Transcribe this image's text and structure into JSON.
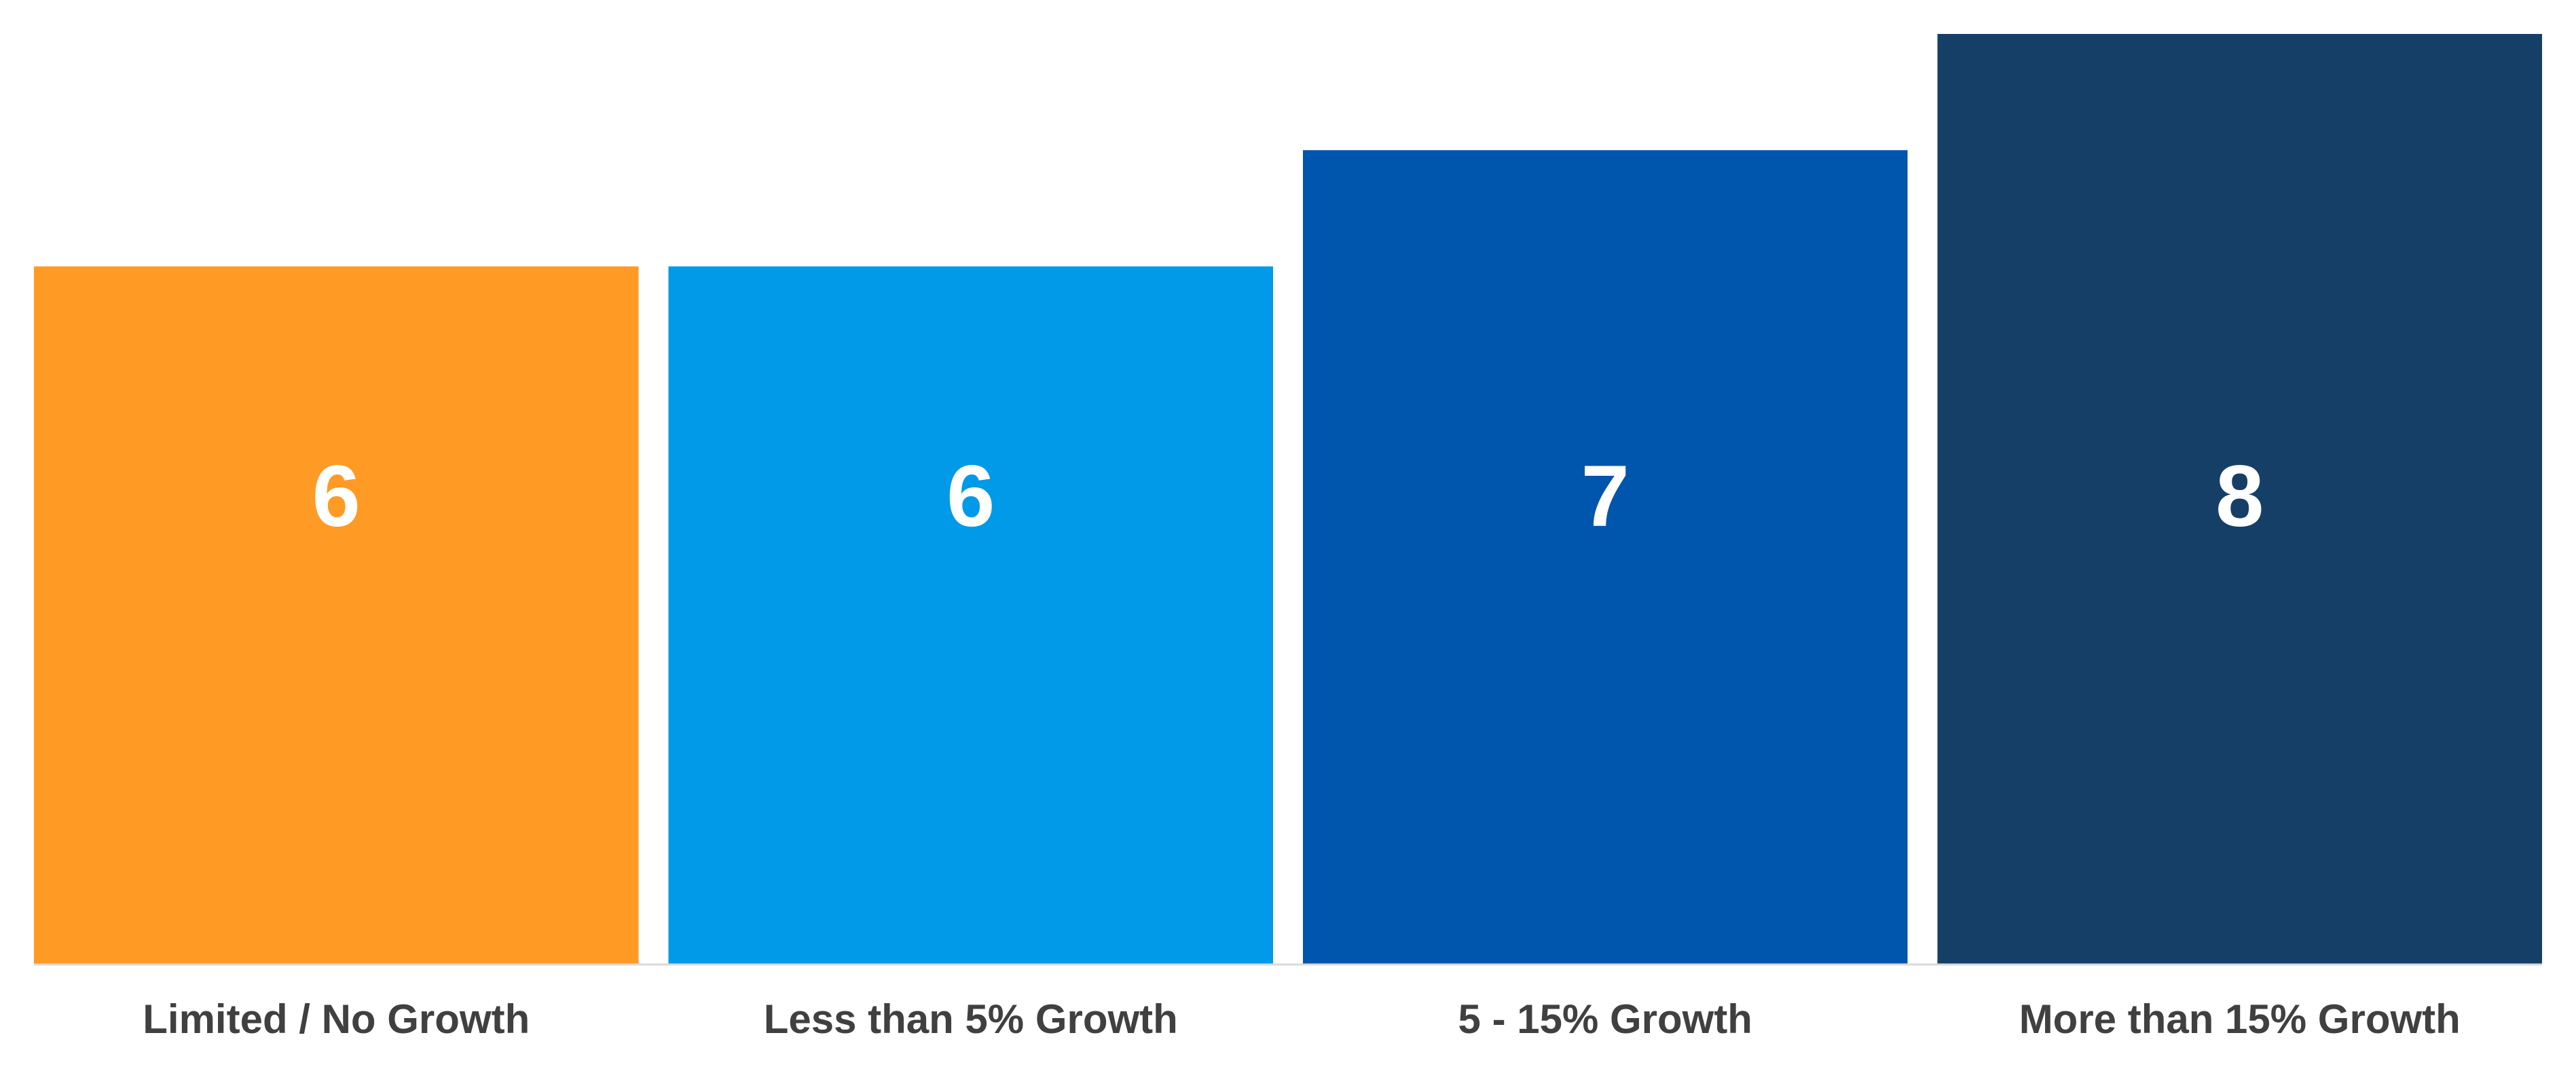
{
  "chart_data": {
    "type": "bar",
    "categories": [
      "Limited / No Growth",
      "Less than 5% Growth",
      "5 - 15% Growth",
      "More than 15% Growth"
    ],
    "values": [
      6,
      6,
      7,
      8
    ],
    "colors": [
      "#FF9A24",
      "#009AE8",
      "#0055AD",
      "#163F68"
    ],
    "ylim": [
      0,
      8
    ],
    "grid": false,
    "legend": "none",
    "data_label_color": "#FFFFFF",
    "tick_label_color": "#404040",
    "axis_color": "#D9D9D9"
  }
}
